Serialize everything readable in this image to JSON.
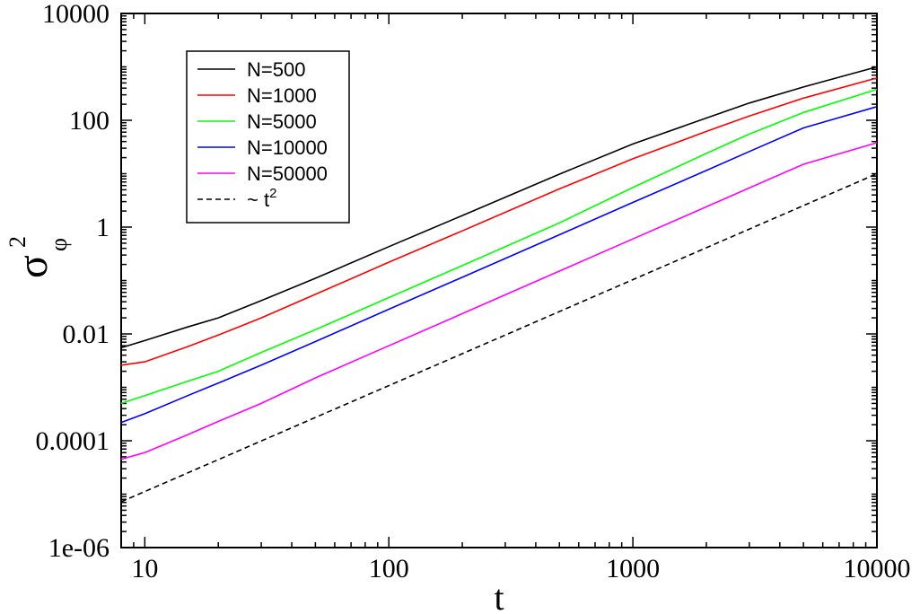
{
  "chart_data": {
    "type": "line",
    "title": "",
    "xlabel": "t",
    "ylabel": "σ",
    "ylabel_subscript": "φ",
    "ylabel_superscript": "2",
    "x_scale": "log",
    "y_scale": "log",
    "xlim": [
      8,
      10000
    ],
    "ylim": [
      1e-06,
      10000
    ],
    "grid": false,
    "legend_position": "top-left",
    "x_tick_labels": [
      "10",
      "100",
      "1000",
      "10000"
    ],
    "x_ticks": [
      10,
      100,
      1000,
      10000
    ],
    "y_tick_labels": [
      "1e-06",
      "0.0001",
      "0.01",
      "1",
      "100",
      "10000"
    ],
    "y_ticks": [
      1e-06,
      0.0001,
      0.01,
      1,
      100,
      10000
    ],
    "series": [
      {
        "name": "N=500",
        "color": "#000000",
        "dash": "solid",
        "points": [
          [
            8,
            0.0055
          ],
          [
            10,
            0.0075
          ],
          [
            15,
            0.0135
          ],
          [
            20,
            0.02
          ],
          [
            30,
            0.042
          ],
          [
            50,
            0.11
          ],
          [
            100,
            0.43
          ],
          [
            200,
            1.65
          ],
          [
            500,
            9.8
          ],
          [
            1000,
            36
          ],
          [
            2000,
            110
          ],
          [
            3000,
            210
          ],
          [
            5000,
            420
          ],
          [
            10000,
            1000
          ]
        ]
      },
      {
        "name": "N=1000",
        "color": "#ff0000",
        "dash": "solid",
        "points": [
          [
            8,
            0.0026
          ],
          [
            10,
            0.003
          ],
          [
            15,
            0.0058
          ],
          [
            20,
            0.0095
          ],
          [
            30,
            0.02
          ],
          [
            50,
            0.055
          ],
          [
            100,
            0.22
          ],
          [
            200,
            0.85
          ],
          [
            500,
            5.2
          ],
          [
            1000,
            19
          ],
          [
            2000,
            62
          ],
          [
            3000,
            120
          ],
          [
            5000,
            260
          ],
          [
            10000,
            620
          ]
        ]
      },
      {
        "name": "N=5000",
        "color": "#00ff00",
        "dash": "solid",
        "points": [
          [
            8,
            0.0005
          ],
          [
            10,
            0.0007
          ],
          [
            15,
            0.0013
          ],
          [
            20,
            0.002
          ],
          [
            30,
            0.0045
          ],
          [
            50,
            0.012
          ],
          [
            100,
            0.048
          ],
          [
            200,
            0.19
          ],
          [
            500,
            1.2
          ],
          [
            1000,
            5.5
          ],
          [
            2000,
            24
          ],
          [
            3000,
            55
          ],
          [
            5000,
            140
          ],
          [
            10000,
            380
          ]
        ]
      },
      {
        "name": "N=10000",
        "color": "#0000ff",
        "dash": "solid",
        "points": [
          [
            8,
            0.00022
          ],
          [
            10,
            0.00032
          ],
          [
            15,
            0.0007
          ],
          [
            20,
            0.0012
          ],
          [
            30,
            0.0026
          ],
          [
            50,
            0.0072
          ],
          [
            100,
            0.029
          ],
          [
            200,
            0.115
          ],
          [
            500,
            0.72
          ],
          [
            1000,
            2.9
          ],
          [
            2000,
            11.5
          ],
          [
            3000,
            26
          ],
          [
            5000,
            72
          ],
          [
            10000,
            180
          ]
        ]
      },
      {
        "name": "N=50000",
        "color": "#ff00ff",
        "dash": "solid",
        "points": [
          [
            8,
            4.5e-05
          ],
          [
            10,
            6e-05
          ],
          [
            15,
            0.00013
          ],
          [
            20,
            0.00023
          ],
          [
            30,
            0.0005
          ],
          [
            50,
            0.0015
          ],
          [
            100,
            0.006
          ],
          [
            200,
            0.024
          ],
          [
            500,
            0.15
          ],
          [
            1000,
            0.6
          ],
          [
            2000,
            2.4
          ],
          [
            3000,
            5.4
          ],
          [
            5000,
            15
          ],
          [
            10000,
            38
          ]
        ]
      },
      {
        "name": "~ t",
        "name_superscript": "2",
        "color": "#000000",
        "dash": "dashed",
        "points": [
          [
            8,
            7.2e-06
          ],
          [
            10000,
            10
          ]
        ]
      }
    ]
  }
}
